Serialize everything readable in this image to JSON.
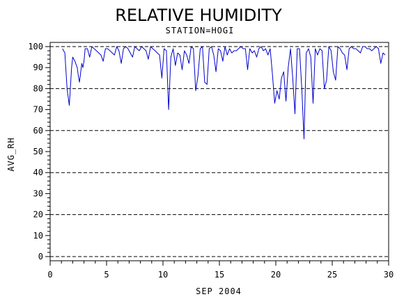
{
  "chart_data": {
    "type": "line",
    "title": "RELATIVE HUMIDITY",
    "subtitle": "STATION=HOGI",
    "xlabel": "SEP 2004",
    "ylabel": "AVG_RH",
    "xlim": [
      0,
      30
    ],
    "ylim": [
      0,
      100
    ],
    "x_ticks": [
      0,
      5,
      10,
      15,
      20,
      25,
      30
    ],
    "y_ticks": [
      0,
      10,
      20,
      30,
      40,
      50,
      60,
      70,
      80,
      90,
      100
    ],
    "reference_lines": [
      0,
      20,
      40,
      60,
      80,
      100
    ],
    "grid": false,
    "line_color": "#0000cc",
    "series": [
      {
        "x": [
          1.1,
          1.3,
          1.5,
          1.7,
          1.9,
          2.0,
          2.2,
          2.4,
          2.5,
          2.6,
          2.8,
          2.9,
          3.0,
          3.1,
          3.3,
          3.5,
          3.7,
          3.9,
          4.1,
          4.3,
          4.5,
          4.7,
          4.9,
          5.1,
          5.3,
          5.5,
          5.7,
          5.9,
          6.1,
          6.3,
          6.5,
          6.7,
          6.9,
          7.1,
          7.3,
          7.5,
          7.7,
          7.9,
          8.1,
          8.3,
          8.5,
          8.7,
          8.9,
          9.1,
          9.3,
          9.5,
          9.7,
          9.9,
          10.1,
          10.3,
          10.5,
          10.7,
          10.9,
          11.1,
          11.3,
          11.5,
          11.7,
          11.9,
          12.1,
          12.3,
          12.5,
          12.7,
          12.9,
          13.1,
          13.3,
          13.5,
          13.7,
          13.9,
          14.1,
          14.3,
          14.5,
          14.7,
          14.9,
          15.1,
          15.3,
          15.5,
          15.7,
          15.9,
          16.1,
          16.3,
          16.5,
          16.7,
          16.9,
          17.1,
          17.3,
          17.5,
          17.7,
          17.9,
          18.1,
          18.3,
          18.5,
          18.7,
          18.9,
          19.1,
          19.3,
          19.5,
          19.7,
          19.9,
          20.1,
          20.3,
          20.5,
          20.7,
          20.9,
          21.1,
          21.3,
          21.5,
          21.7,
          21.9,
          22.1,
          22.3,
          22.5,
          22.7,
          22.9,
          23.1,
          23.3,
          23.5,
          23.7,
          23.9,
          24.1,
          24.3,
          24.5,
          24.7,
          24.9,
          25.1,
          25.3,
          25.5,
          25.7,
          25.9,
          26.1,
          26.3,
          26.5,
          26.7,
          26.9,
          27.1,
          27.3,
          27.5,
          27.7,
          27.9,
          28.1,
          28.3,
          28.5,
          28.7,
          28.9,
          29.1,
          29.3,
          29.5,
          29.7
        ],
        "values": [
          99,
          97,
          80,
          72,
          90,
          95,
          93,
          90,
          86,
          83,
          92,
          90,
          93,
          99,
          99,
          95,
          100,
          99,
          98,
          97,
          96,
          93,
          99,
          99,
          98,
          97,
          96,
          100,
          98,
          92,
          99,
          100,
          99,
          97,
          95,
          100,
          99,
          98,
          100,
          99,
          98,
          94,
          100,
          99,
          98,
          97,
          96,
          85,
          99,
          98,
          70,
          95,
          99,
          91,
          97,
          96,
          89,
          98,
          96,
          92,
          100,
          99,
          79,
          86,
          99,
          100,
          83,
          82,
          99,
          100,
          96,
          88,
          99,
          98,
          93,
          100,
          96,
          99,
          97,
          98,
          98,
          99,
          100,
          99,
          99,
          89,
          99,
          97,
          98,
          95,
          99,
          100,
          98,
          99,
          96,
          99,
          87,
          73,
          79,
          75,
          85,
          88,
          74,
          90,
          99,
          85,
          68,
          99,
          99,
          80,
          56,
          97,
          99,
          95,
          73,
          99,
          96,
          99,
          98,
          80,
          84,
          100,
          98,
          88,
          84,
          100,
          99,
          97,
          96,
          89,
          99,
          100,
          99,
          99,
          98,
          97,
          100,
          100,
          99,
          99,
          98,
          99,
          100,
          99,
          92,
          97,
          96
        ]
      }
    ]
  }
}
